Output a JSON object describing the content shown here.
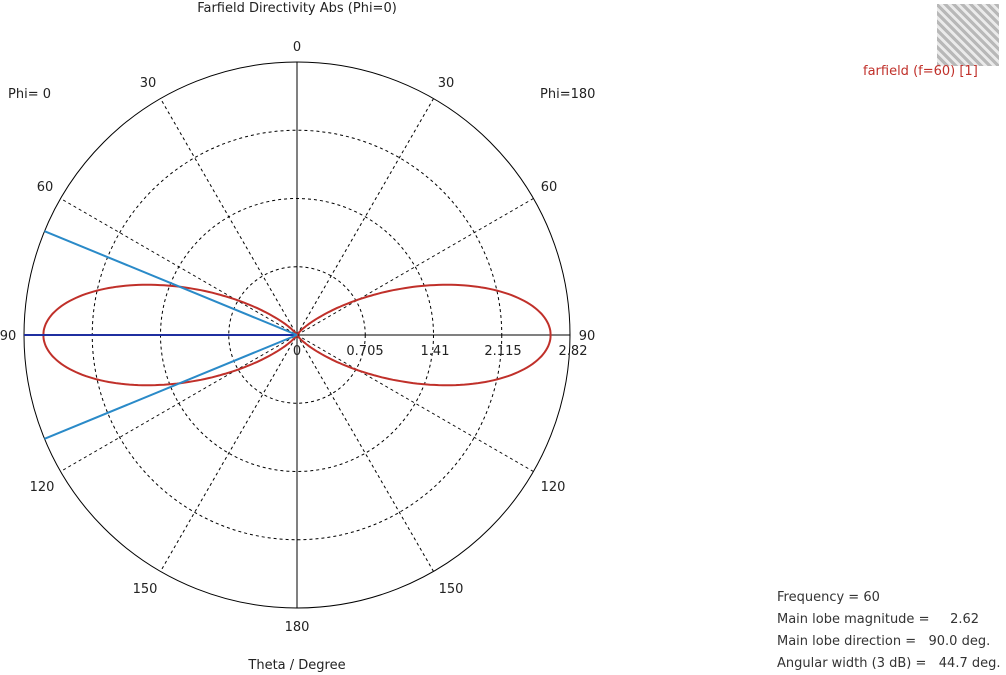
{
  "chart_data": {
    "type": "polar",
    "title": "Farfield Directivity Abs (Phi=0)",
    "xlabel": "Theta / Degree",
    "side_labels": {
      "left": "Phi=  0",
      "right": "Phi=180"
    },
    "angle_ticks": [
      "0",
      "30",
      "60",
      "90",
      "120",
      "150",
      "180"
    ],
    "radial_ticks": [
      "0",
      "0.705",
      "1.41",
      "2.115",
      "2.82"
    ],
    "rlim": [
      0,
      2.82
    ],
    "grid": true,
    "legend_position": "top-right",
    "series": [
      {
        "name": "farfield (f=60) [1]",
        "color": "#c0302a",
        "max": 2.62,
        "main_lobe_deg": 90.0,
        "hpbw_deg": 44.7
      }
    ],
    "markers": {
      "main_lobe_color": "#1f2fa0",
      "beamwidth_color": "#2a8ac8"
    }
  },
  "info": {
    "lines": [
      "Frequency = 60",
      "Main lobe magnitude =     2.62",
      "Main lobe direction =   90.0 deg.",
      "Angular width (3 dB) =   44.7 deg."
    ]
  }
}
